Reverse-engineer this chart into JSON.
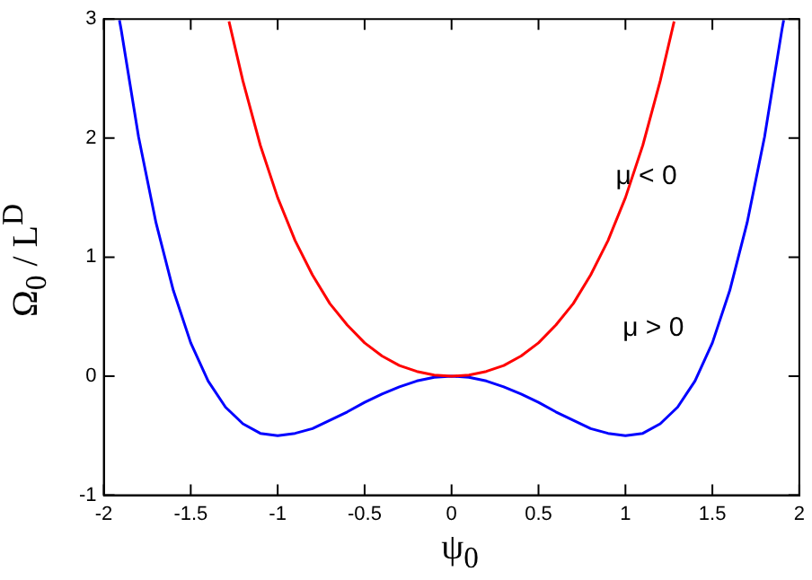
{
  "chart_data": {
    "type": "line",
    "xlabel": "ψ$_{0}$",
    "ylabel": "Ω$_{0}$ / L$^{D}$",
    "series": [
      {
        "color": "#ff0000",
        "x": [
          -1.28,
          -1.2,
          -1.1,
          -1.0,
          -0.9,
          -0.8,
          -0.7,
          -0.6,
          -0.5,
          -0.4,
          -0.3,
          -0.2,
          -0.1,
          0,
          0.1,
          0.2,
          0.3,
          0.4,
          0.5,
          0.6,
          0.7,
          0.8,
          0.9,
          1.0,
          1.1,
          1.2,
          1.28
        ],
        "values": [
          2.98,
          2.48,
          1.94,
          1.5,
          1.14,
          0.85,
          0.61,
          0.43,
          0.28,
          0.17,
          0.09,
          0.04,
          0.01,
          0,
          0.01,
          0.04,
          0.09,
          0.17,
          0.28,
          0.43,
          0.61,
          0.85,
          1.14,
          1.5,
          1.94,
          2.48,
          2.98
        ]
      },
      {
        "color": "#0000ff",
        "x": [
          -1.91,
          -1.9,
          -1.8,
          -1.7,
          -1.6,
          -1.5,
          -1.4,
          -1.3,
          -1.2,
          -1.1,
          -1.0,
          -0.9,
          -0.8,
          -0.7,
          -0.6,
          -0.5,
          -0.4,
          -0.3,
          -0.2,
          -0.1,
          0,
          0.1,
          0.2,
          0.3,
          0.4,
          0.5,
          0.6,
          0.7,
          0.8,
          0.9,
          1.0,
          1.1,
          1.2,
          1.3,
          1.4,
          1.5,
          1.6,
          1.7,
          1.8,
          1.9,
          1.91
        ],
        "values": [
          2.99,
          2.91,
          2.01,
          1.29,
          0.72,
          0.28,
          -0.04,
          -0.26,
          -0.4,
          -0.48,
          -0.5,
          -0.48,
          -0.44,
          -0.37,
          -0.3,
          -0.22,
          -0.15,
          -0.09,
          -0.04,
          -0.01,
          0,
          -0.01,
          -0.04,
          -0.09,
          -0.15,
          -0.22,
          -0.3,
          -0.37,
          -0.44,
          -0.48,
          -0.5,
          -0.48,
          -0.4,
          -0.26,
          -0.04,
          0.28,
          0.72,
          1.29,
          2.01,
          2.91,
          2.99
        ]
      }
    ],
    "xlim": [
      -2,
      2
    ],
    "xticks": [
      -2,
      -1.5,
      -1,
      -0.5,
      0,
      0.5,
      1,
      1.5,
      2
    ],
    "ylim": [
      -1,
      3
    ],
    "yticks": [
      -1,
      0,
      1,
      2,
      3
    ],
    "grid": false,
    "legend": false,
    "marker": "none",
    "line_style": "solid",
    "annotations": [
      "μ < 0",
      "μ > 0"
    ]
  }
}
